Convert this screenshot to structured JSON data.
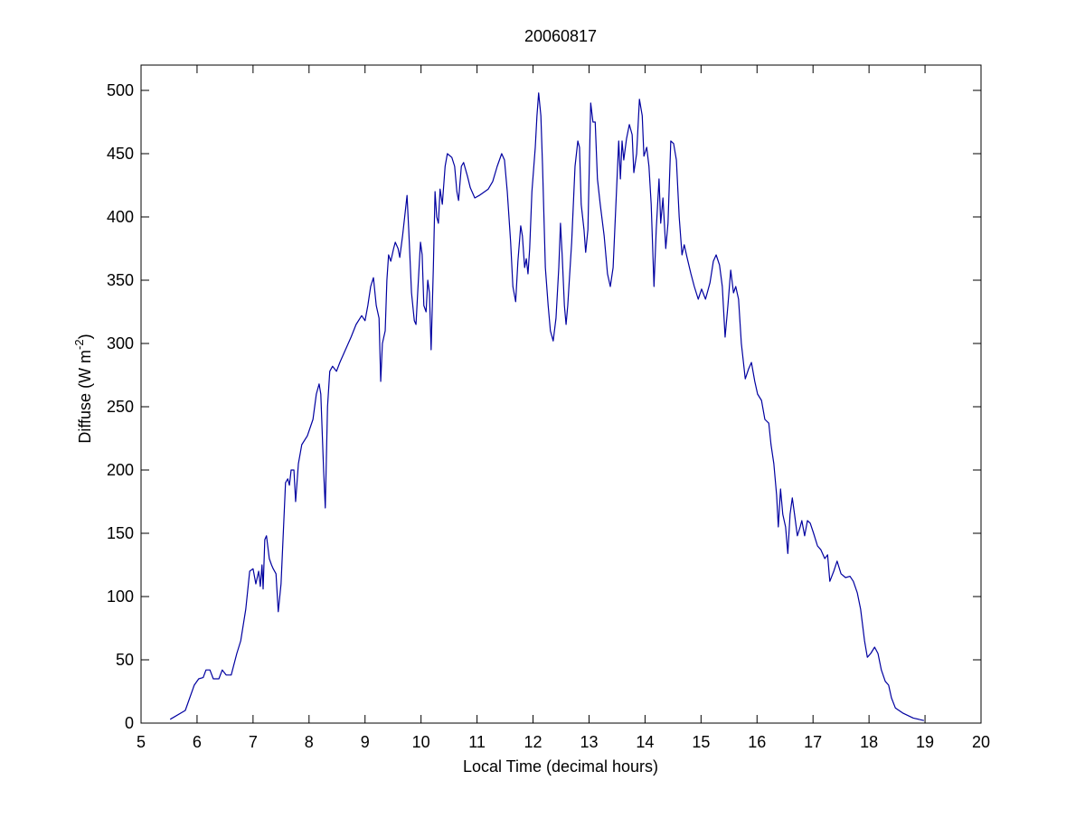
{
  "chart_data": {
    "type": "line",
    "title": "20060817",
    "xlabel": "Local Time (decimal hours)",
    "ylabel": [
      "Diffuse (W m",
      "-2",
      ")"
    ],
    "xlim": [
      5,
      20
    ],
    "ylim": [
      0,
      520
    ],
    "xticks": [
      5,
      6,
      7,
      8,
      9,
      10,
      11,
      12,
      13,
      14,
      15,
      16,
      17,
      18,
      19,
      20
    ],
    "yticks": [
      0,
      50,
      100,
      150,
      200,
      250,
      300,
      350,
      400,
      450,
      500
    ],
    "grid": false,
    "x": [
      5.52,
      5.79,
      5.95,
      6.03,
      6.11,
      6.16,
      6.23,
      6.29,
      6.39,
      6.45,
      6.52,
      6.61,
      6.71,
      6.78,
      6.87,
      6.94,
      7.0,
      7.05,
      7.1,
      7.13,
      7.16,
      7.18,
      7.21,
      7.24,
      7.29,
      7.33,
      7.36,
      7.41,
      7.45,
      7.5,
      7.55,
      7.58,
      7.62,
      7.65,
      7.68,
      7.73,
      7.76,
      7.81,
      7.87,
      7.97,
      8.07,
      8.13,
      8.18,
      8.21,
      8.26,
      8.29,
      8.33,
      8.37,
      8.42,
      8.49,
      8.55,
      8.65,
      8.75,
      8.84,
      8.94,
      9.0,
      9.05,
      9.1,
      9.15,
      9.2,
      9.25,
      9.28,
      9.31,
      9.36,
      9.39,
      9.42,
      9.46,
      9.51,
      9.54,
      9.59,
      9.62,
      9.67,
      9.72,
      9.75,
      9.78,
      9.83,
      9.88,
      9.91,
      9.94,
      9.99,
      10.02,
      10.05,
      10.09,
      10.12,
      10.15,
      10.18,
      10.22,
      10.25,
      10.28,
      10.31,
      10.34,
      10.38,
      10.43,
      10.47,
      10.55,
      10.6,
      10.64,
      10.67,
      10.72,
      10.76,
      10.83,
      10.88,
      10.96,
      11.04,
      11.2,
      11.28,
      11.36,
      11.44,
      11.49,
      11.54,
      11.57,
      11.6,
      11.64,
      11.69,
      11.73,
      11.78,
      11.81,
      11.85,
      11.88,
      11.91,
      11.94,
      11.98,
      12.04,
      12.07,
      12.1,
      12.14,
      12.17,
      12.22,
      12.27,
      12.31,
      12.36,
      12.41,
      12.46,
      12.49,
      12.52,
      12.56,
      12.59,
      12.62,
      12.69,
      12.75,
      12.8,
      12.83,
      12.86,
      12.91,
      12.94,
      12.98,
      13.03,
      13.07,
      13.11,
      13.15,
      13.2,
      13.27,
      13.33,
      13.38,
      13.43,
      13.49,
      13.53,
      13.56,
      13.59,
      13.62,
      13.67,
      13.72,
      13.77,
      13.8,
      13.85,
      13.9,
      13.95,
      13.98,
      14.03,
      14.07,
      14.11,
      14.16,
      14.2,
      14.25,
      14.28,
      14.32,
      14.37,
      14.41,
      14.46,
      14.51,
      14.56,
      14.61,
      14.66,
      14.7,
      14.75,
      14.82,
      14.88,
      14.95,
      15.01,
      15.08,
      15.16,
      15.22,
      15.27,
      15.33,
      15.38,
      15.43,
      15.48,
      15.53,
      15.58,
      15.62,
      15.67,
      15.72,
      15.79,
      15.85,
      15.9,
      15.96,
      16.01,
      16.08,
      16.14,
      16.21,
      16.25,
      16.3,
      16.35,
      16.38,
      16.42,
      16.46,
      16.51,
      16.55,
      16.59,
      16.63,
      16.67,
      16.72,
      16.77,
      16.8,
      16.85,
      16.9,
      16.95,
      17.01,
      17.08,
      17.14,
      17.21,
      17.26,
      17.3,
      17.37,
      17.43,
      17.5,
      17.58,
      17.66,
      17.72,
      17.79,
      17.85,
      17.92,
      17.97,
      18.03,
      18.1,
      18.16,
      18.22,
      18.29,
      18.35,
      18.4,
      18.47,
      18.6,
      18.79,
      18.98
    ],
    "series": [
      {
        "color": "#0000a0",
        "values": [
          3,
          10,
          30,
          35,
          36,
          42,
          42,
          35,
          35,
          42,
          38,
          38,
          55,
          65,
          90,
          120,
          122,
          110,
          120,
          108,
          125,
          106,
          145,
          148,
          130,
          125,
          122,
          118,
          88,
          110,
          160,
          190,
          193,
          188,
          200,
          200,
          175,
          205,
          220,
          227,
          240,
          260,
          268,
          260,
          200,
          170,
          250,
          278,
          282,
          278,
          285,
          295,
          305,
          315,
          322,
          318,
          330,
          345,
          352,
          330,
          320,
          270,
          300,
          310,
          350,
          370,
          365,
          375,
          380,
          375,
          368,
          385,
          405,
          417,
          390,
          340,
          318,
          315,
          340,
          380,
          370,
          330,
          325,
          350,
          340,
          295,
          360,
          420,
          400,
          395,
          422,
          410,
          440,
          450,
          447,
          440,
          420,
          413,
          440,
          443,
          432,
          423,
          415,
          417,
          422,
          428,
          440,
          450,
          445,
          420,
          400,
          380,
          345,
          333,
          365,
          393,
          385,
          360,
          367,
          355,
          375,
          420,
          455,
          480,
          498,
          480,
          440,
          360,
          330,
          310,
          302,
          320,
          360,
          395,
          370,
          330,
          315,
          330,
          380,
          440,
          460,
          455,
          410,
          390,
          372,
          390,
          490,
          475,
          475,
          430,
          410,
          385,
          355,
          345,
          360,
          420,
          460,
          430,
          460,
          445,
          462,
          473,
          465,
          435,
          450,
          493,
          480,
          448,
          455,
          440,
          410,
          345,
          390,
          430,
          395,
          415,
          375,
          395,
          460,
          458,
          445,
          400,
          370,
          378,
          368,
          355,
          345,
          335,
          343,
          335,
          348,
          365,
          370,
          362,
          345,
          305,
          330,
          358,
          340,
          345,
          335,
          300,
          272,
          280,
          285,
          270,
          260,
          255,
          240,
          237,
          220,
          205,
          180,
          155,
          185,
          165,
          155,
          134,
          165,
          178,
          165,
          148,
          155,
          160,
          148,
          160,
          158,
          150,
          140,
          137,
          130,
          133,
          112,
          120,
          128,
          118,
          115,
          116,
          112,
          103,
          90,
          65,
          52,
          55,
          60,
          55,
          42,
          33,
          30,
          20,
          12,
          8,
          4,
          2
        ]
      }
    ]
  }
}
